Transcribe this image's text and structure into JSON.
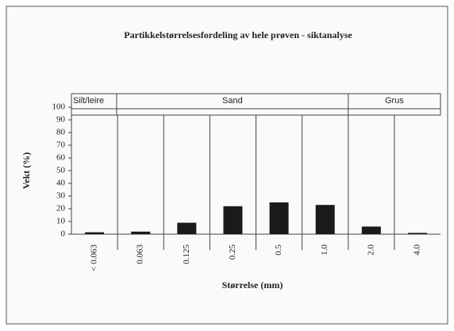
{
  "chart_data": {
    "type": "bar",
    "title": "Partikkelstørrelsesfordeling av hele prøven - siktanalyse",
    "y_label": "Vekt (%)",
    "x_label": "Størrelse (mm)",
    "zones": [
      "Silt/leire",
      "Sand",
      "Grus"
    ],
    "categories": [
      "< 0.063",
      "0.063",
      "0.125",
      "0.25",
      "0.5",
      "1.0",
      "2.0",
      "4.0"
    ],
    "values": [
      1.5,
      2,
      9,
      22,
      25,
      23,
      6,
      1
    ],
    "color": "#1a1a1a",
    "ylim": [
      0,
      100
    ],
    "yticks": [
      0,
      10,
      20,
      30,
      40,
      50,
      60,
      70,
      80,
      90,
      100
    ],
    "grid": false
  }
}
